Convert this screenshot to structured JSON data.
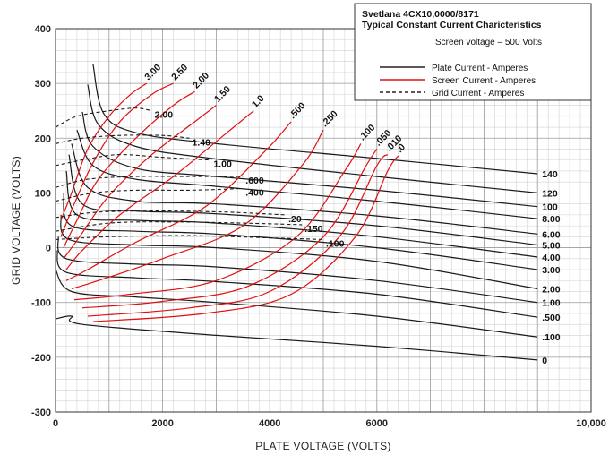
{
  "chart_data": {
    "type": "line",
    "title": "Svetlana 4CX10,0000/8171",
    "subtitle": "Typical Constant Current Charicteristics",
    "note": "Screen voltage – 500 Volts",
    "xlabel": "PLATE VOLTAGE (VOLTS)",
    "ylabel": "GRID VOLTAGE (VOLTS)",
    "xlim": [
      0,
      10000
    ],
    "ylim": [
      -300,
      400
    ],
    "x_ticks": [
      "0",
      "2000",
      "4000",
      "6000",
      "10,000"
    ],
    "x_tick_values": [
      0,
      2000,
      4000,
      6000,
      10000
    ],
    "y_ticks": [
      "400",
      "300",
      "200",
      "100",
      "0",
      "-100",
      "-200",
      "-300"
    ],
    "y_tick_values": [
      400,
      300,
      200,
      100,
      0,
      -100,
      -200,
      -300
    ],
    "grid": true,
    "legend_placement": "top-right",
    "legend": [
      {
        "label": "Plate Current - Amperes",
        "color": "#222222",
        "style": "solid"
      },
      {
        "label": "Screen Current - Amperes",
        "color": "#e01010",
        "style": "solid"
      },
      {
        "label": "Grid Current - Amperes",
        "color": "#222222",
        "style": "dashed"
      }
    ],
    "plate_current": [
      {
        "name": "140",
        "points": [
          [
            700,
            335
          ],
          [
            900,
            245
          ],
          [
            1500,
            210
          ],
          [
            3000,
            190
          ],
          [
            6000,
            163
          ],
          [
            9000,
            135
          ]
        ]
      },
      {
        "name": "120",
        "points": [
          [
            600,
            298
          ],
          [
            800,
            225
          ],
          [
            1500,
            185
          ],
          [
            3000,
            162
          ],
          [
            6000,
            130
          ],
          [
            9000,
            100
          ]
        ]
      },
      {
        "name": "100",
        "points": [
          [
            500,
            248
          ],
          [
            700,
            185
          ],
          [
            1500,
            145
          ],
          [
            3000,
            130
          ],
          [
            6000,
            105
          ],
          [
            9000,
            75
          ]
        ]
      },
      {
        "name": "8.00",
        "points": [
          [
            400,
            215
          ],
          [
            700,
            150
          ],
          [
            1500,
            125
          ],
          [
            3000,
            112
          ],
          [
            6000,
            85
          ],
          [
            9000,
            53
          ]
        ]
      },
      {
        "name": "6.00",
        "points": [
          [
            300,
            190
          ],
          [
            600,
            110
          ],
          [
            1500,
            85
          ],
          [
            3000,
            80
          ],
          [
            6000,
            58
          ],
          [
            9000,
            25
          ]
        ]
      },
      {
        "name": "5.00",
        "points": [
          [
            250,
            170
          ],
          [
            500,
            80
          ],
          [
            1500,
            67
          ],
          [
            3000,
            62
          ],
          [
            6000,
            40
          ],
          [
            9000,
            5
          ]
        ]
      },
      {
        "name": "4.00",
        "points": [
          [
            200,
            140
          ],
          [
            400,
            60
          ],
          [
            1500,
            50
          ],
          [
            3000,
            45
          ],
          [
            6000,
            20
          ],
          [
            9000,
            -17
          ]
        ]
      },
      {
        "name": "3.00",
        "points": [
          [
            150,
            100
          ],
          [
            300,
            40
          ],
          [
            1500,
            30
          ],
          [
            3000,
            25
          ],
          [
            6000,
            0
          ],
          [
            9000,
            -40
          ]
        ]
      },
      {
        "name": "2.00",
        "points": [
          [
            100,
            60
          ],
          [
            250,
            15
          ],
          [
            1500,
            5
          ],
          [
            3000,
            0
          ],
          [
            6000,
            -25
          ],
          [
            9000,
            -75
          ]
        ]
      },
      {
        "name": "1.00",
        "points": [
          [
            50,
            20
          ],
          [
            200,
            -20
          ],
          [
            1500,
            -30
          ],
          [
            3000,
            -35
          ],
          [
            6000,
            -60
          ],
          [
            9000,
            -100
          ]
        ]
      },
      {
        "name": ".500",
        "points": [
          [
            30,
            -5
          ],
          [
            200,
            -45
          ],
          [
            1500,
            -55
          ],
          [
            3000,
            -62
          ],
          [
            6000,
            -85
          ],
          [
            9000,
            -127
          ]
        ]
      },
      {
        "name": ".100",
        "points": [
          [
            0,
            -40
          ],
          [
            300,
            -80
          ],
          [
            1500,
            -90
          ],
          [
            3000,
            -100
          ],
          [
            6000,
            -125
          ],
          [
            9000,
            -163
          ]
        ]
      },
      {
        "name": "0",
        "points": [
          [
            0,
            -130
          ],
          [
            300,
            -125
          ],
          [
            500,
            -140
          ],
          [
            3000,
            -160
          ],
          [
            6000,
            -180
          ],
          [
            9000,
            -205
          ]
        ]
      }
    ],
    "screen_current": [
      {
        "name": "3.00",
        "points": [
          [
            100,
            50
          ],
          [
            300,
            100
          ],
          [
            600,
            180
          ],
          [
            1000,
            240
          ],
          [
            1400,
            280
          ],
          [
            1700,
            300
          ]
        ]
      },
      {
        "name": "2.50",
        "points": [
          [
            100,
            20
          ],
          [
            350,
            80
          ],
          [
            700,
            155
          ],
          [
            1200,
            230
          ],
          [
            1800,
            280
          ],
          [
            2200,
            300
          ]
        ]
      },
      {
        "name": "2.00",
        "points": [
          [
            150,
            0
          ],
          [
            400,
            50
          ],
          [
            800,
            125
          ],
          [
            1500,
            200
          ],
          [
            2200,
            260
          ],
          [
            2600,
            285
          ]
        ]
      },
      {
        "name": "1.50",
        "points": [
          [
            150,
            -20
          ],
          [
            450,
            20
          ],
          [
            1000,
            95
          ],
          [
            1800,
            170
          ],
          [
            2600,
            230
          ],
          [
            3000,
            260
          ]
        ]
      },
      {
        "name": "1.0",
        "points": [
          [
            200,
            -40
          ],
          [
            500,
            -5
          ],
          [
            1200,
            60
          ],
          [
            2200,
            130
          ],
          [
            3200,
            210
          ],
          [
            3700,
            250
          ]
        ]
      },
      {
        "name": ".500",
        "points": [
          [
            200,
            -60
          ],
          [
            600,
            -40
          ],
          [
            1500,
            10
          ],
          [
            2800,
            75
          ],
          [
            3900,
            175
          ],
          [
            4400,
            230
          ]
        ]
      },
      {
        "name": ".250",
        "points": [
          [
            300,
            -75
          ],
          [
            800,
            -60
          ],
          [
            2000,
            -20
          ],
          [
            3500,
            40
          ],
          [
            4600,
            150
          ],
          [
            5000,
            215
          ]
        ]
      },
      {
        "name": ".100",
        "points": [
          [
            350,
            -95
          ],
          [
            1400,
            -85
          ],
          [
            3000,
            -60
          ],
          [
            4500,
            20
          ],
          [
            5400,
            140
          ],
          [
            5700,
            190
          ]
        ]
      },
      {
        "name": ".050",
        "points": [
          [
            500,
            -110
          ],
          [
            2000,
            -98
          ],
          [
            3600,
            -70
          ],
          [
            5000,
            20
          ],
          [
            5800,
            150
          ],
          [
            6000,
            180
          ]
        ]
      },
      {
        "name": ".010",
        "points": [
          [
            600,
            -125
          ],
          [
            2500,
            -110
          ],
          [
            4000,
            -80
          ],
          [
            5300,
            20
          ],
          [
            6000,
            150
          ],
          [
            6200,
            170
          ]
        ]
      },
      {
        "name": ".0",
        "points": [
          [
            700,
            -135
          ],
          [
            2800,
            -120
          ],
          [
            4400,
            -85
          ],
          [
            5600,
            20
          ],
          [
            6200,
            140
          ],
          [
            6400,
            168
          ]
        ]
      }
    ],
    "grid_current": [
      {
        "name": "2.00",
        "points": [
          [
            0,
            220
          ],
          [
            400,
            240
          ],
          [
            1000,
            250
          ],
          [
            1500,
            255
          ],
          [
            1800,
            250
          ]
        ]
      },
      {
        "name": "1.40",
        "points": [
          [
            0,
            190
          ],
          [
            500,
            200
          ],
          [
            1200,
            205
          ],
          [
            2000,
            205
          ],
          [
            2500,
            200
          ]
        ]
      },
      {
        "name": "1.00",
        "points": [
          [
            0,
            150
          ],
          [
            600,
            162
          ],
          [
            1200,
            170
          ],
          [
            2000,
            165
          ],
          [
            2900,
            160
          ]
        ]
      },
      {
        "name": ".600",
        "points": [
          [
            0,
            110
          ],
          [
            600,
            125
          ],
          [
            1500,
            130
          ],
          [
            2500,
            130
          ],
          [
            3500,
            130
          ]
        ]
      },
      {
        "name": ".400",
        "points": [
          [
            0,
            85
          ],
          [
            700,
            100
          ],
          [
            1500,
            105
          ],
          [
            2500,
            105
          ],
          [
            3500,
            108
          ]
        ]
      },
      {
        "name": ".20",
        "points": [
          [
            0,
            55
          ],
          [
            800,
            65
          ],
          [
            2000,
            67
          ],
          [
            3200,
            65
          ],
          [
            4300,
            60
          ]
        ]
      },
      {
        "name": ".150",
        "points": [
          [
            0,
            30
          ],
          [
            1000,
            45
          ],
          [
            2200,
            47
          ],
          [
            3500,
            45
          ],
          [
            4600,
            42
          ]
        ]
      },
      {
        "name": ".100",
        "points": [
          [
            0,
            15
          ],
          [
            1000,
            20
          ],
          [
            2500,
            22
          ],
          [
            4000,
            18
          ],
          [
            5000,
            15
          ]
        ]
      }
    ]
  }
}
